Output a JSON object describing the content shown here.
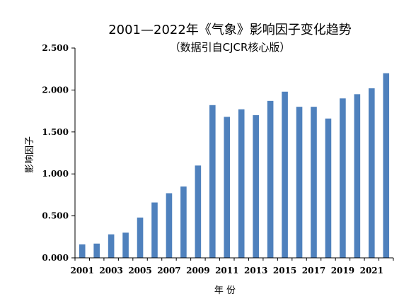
{
  "chart_data": {
    "type": "bar",
    "title": "2001—2022年《气象》影响因子变化趋势",
    "subtitle": "（数据引自CJCR核心版）",
    "xlabel": "年  份",
    "ylabel": "影响因子",
    "categories": [
      "2001",
      "2002",
      "2003",
      "2004",
      "2005",
      "2006",
      "2007",
      "2008",
      "2009",
      "2010",
      "2011",
      "2012",
      "2013",
      "2014",
      "2015",
      "2016",
      "2017",
      "2018",
      "2019",
      "2020",
      "2021",
      "2022"
    ],
    "x_tick_labels": [
      "2001",
      "2003",
      "2005",
      "2007",
      "2009",
      "2011",
      "2013",
      "2015",
      "2017",
      "2019",
      "2021"
    ],
    "values": [
      0.16,
      0.17,
      0.28,
      0.3,
      0.48,
      0.66,
      0.77,
      0.85,
      1.1,
      1.82,
      1.68,
      1.77,
      1.7,
      1.87,
      1.98,
      1.8,
      1.8,
      1.66,
      1.9,
      1.95,
      2.02,
      2.2
    ],
    "ylim": [
      0,
      2.5
    ],
    "y_ticks": [
      "0.000",
      "0.500",
      "1.000",
      "1.500",
      "2.000",
      "2.500"
    ],
    "bar_color": "#4f81bd",
    "grid": false
  }
}
